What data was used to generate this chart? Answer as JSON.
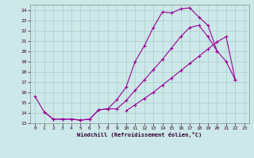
{
  "xlabel": "Windchill (Refroidissement éolien,°C)",
  "background_color": "#cce8e8",
  "grid_color": "#aacccc",
  "line_color": "#990099",
  "xlim": [
    -0.5,
    23.5
  ],
  "ylim": [
    13,
    24.5
  ],
  "yticks": [
    13,
    14,
    15,
    16,
    17,
    18,
    19,
    20,
    21,
    22,
    23,
    24
  ],
  "xticks": [
    0,
    1,
    2,
    3,
    4,
    5,
    6,
    7,
    8,
    9,
    10,
    11,
    12,
    13,
    14,
    15,
    16,
    17,
    18,
    19,
    20,
    21,
    22,
    23
  ],
  "line1_x": [
    0,
    1,
    2,
    3,
    4,
    5,
    6,
    7,
    8,
    9,
    10,
    11,
    12,
    13,
    14,
    15,
    16,
    17,
    18,
    19,
    20,
    21,
    22
  ],
  "line1_y": [
    15.6,
    14.1,
    13.4,
    13.4,
    13.4,
    13.3,
    13.4,
    14.3,
    14.4,
    15.3,
    16.5,
    19.0,
    20.5,
    22.3,
    23.8,
    23.7,
    24.1,
    24.2,
    23.3,
    22.5,
    20.0,
    19.0,
    17.2
  ],
  "line2_x": [
    1,
    2,
    3,
    4,
    5,
    6,
    7,
    8,
    9,
    10,
    11,
    12,
    13,
    14,
    15,
    16,
    17,
    18,
    19,
    20,
    21,
    22
  ],
  "line2_y": [
    14.1,
    13.4,
    13.4,
    13.4,
    13.3,
    13.4,
    14.3,
    14.4,
    14.4,
    15.2,
    16.2,
    17.2,
    18.2,
    19.2,
    20.3,
    21.4,
    22.3,
    22.5,
    21.4,
    20.0,
    null,
    null
  ],
  "line3_x": [
    1,
    2,
    3,
    4,
    5,
    6,
    7,
    8,
    9,
    10,
    11,
    12,
    13,
    14,
    15,
    16,
    17,
    18,
    19,
    20,
    21,
    22
  ],
  "line3_y": [
    null,
    null,
    null,
    null,
    null,
    null,
    null,
    null,
    null,
    14.2,
    14.8,
    15.4,
    16.0,
    16.7,
    17.4,
    18.1,
    18.8,
    19.5,
    20.2,
    20.9,
    21.4,
    17.2
  ]
}
